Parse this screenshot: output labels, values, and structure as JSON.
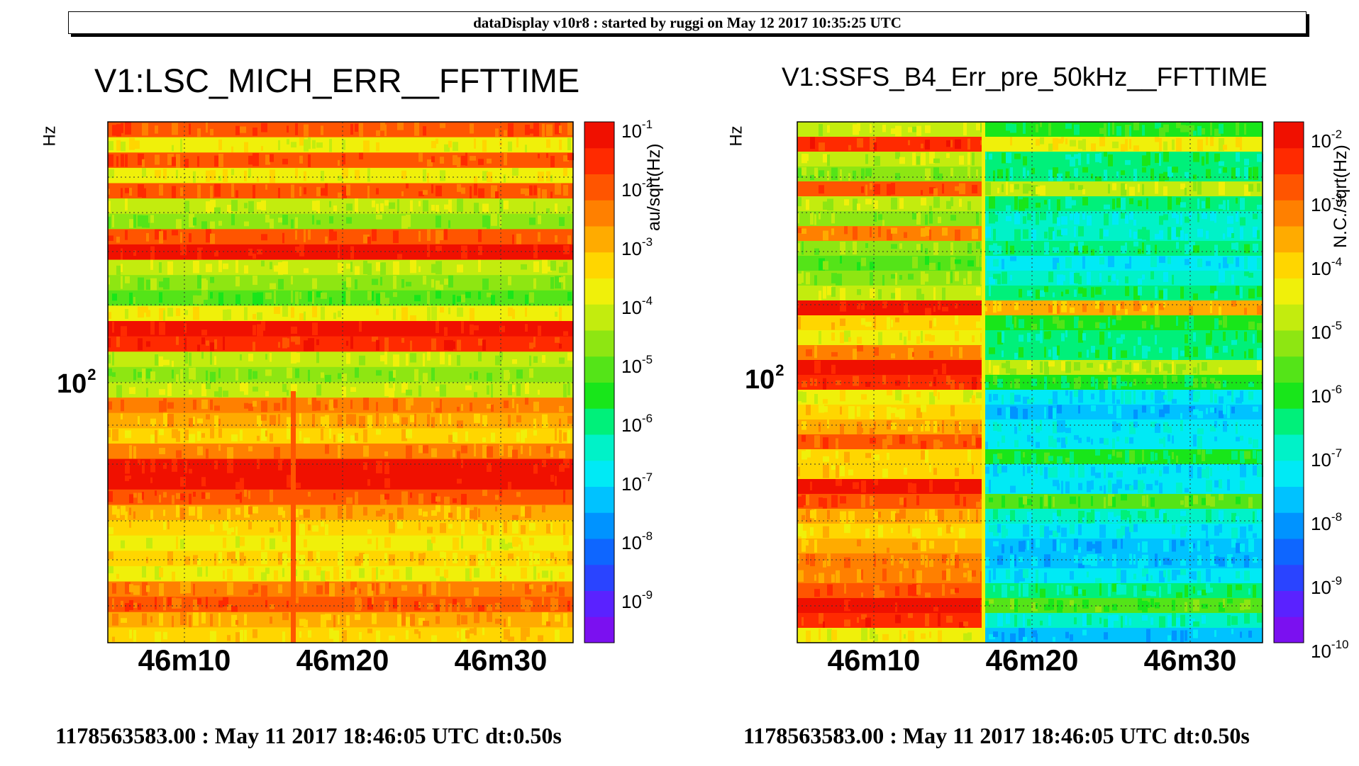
{
  "header": {
    "text": "dataDisplay v10r8 : started by ruggi on May 12 2017 10:35:25 UTC"
  },
  "colors": {
    "palette": [
      "#7b10f0",
      "#5a22ff",
      "#2a44ff",
      "#0e66ff",
      "#0093ff",
      "#00c2ff",
      "#00eaf5",
      "#00f2c8",
      "#00f07a",
      "#18e61a",
      "#54e418",
      "#8ee612",
      "#c3ec0e",
      "#f0f00a",
      "#ffd600",
      "#ffab00",
      "#ff8000",
      "#ff5500",
      "#ff2a00",
      "#f01000"
    ]
  },
  "chart_data": [
    {
      "type": "heatmap",
      "title": "V1:LSC_MICH_ERR__FFTTIME",
      "ylabel": "Hz",
      "y_tick_labels": [
        {
          "base": "10",
          "exp": "2"
        }
      ],
      "x_tick_labels": [
        "46m10",
        "46m20",
        "46m30"
      ],
      "colorbar_label": "au/sqrt(Hz)",
      "colorbar_ticks": [
        {
          "base": "10",
          "exp": "-1"
        },
        {
          "base": "10",
          "exp": "-2"
        },
        {
          "base": "10",
          "exp": "-3"
        },
        {
          "base": "10",
          "exp": "-4"
        },
        {
          "base": "10",
          "exp": "-5"
        },
        {
          "base": "10",
          "exp": "-6"
        },
        {
          "base": "10",
          "exp": "-7"
        },
        {
          "base": "10",
          "exp": "-8"
        },
        {
          "base": "10",
          "exp": "-9"
        }
      ],
      "footer": "1178563583.00 : May 11 2017 18:46:05 UTC dt:0.50s",
      "description_bands_level": [
        17,
        13,
        17,
        13,
        17,
        12,
        11,
        17,
        19,
        12,
        11,
        10,
        13,
        19,
        18,
        12,
        11,
        12,
        16,
        15,
        14,
        16,
        19,
        19,
        17,
        15,
        14,
        13,
        14,
        13,
        16,
        17,
        15,
        14
      ],
      "vertical_glitch_level": 17
    },
    {
      "type": "heatmap",
      "title": "V1:SSFS_B4_Err_pre_50kHz__FFTTIME",
      "ylabel": "Hz",
      "y_tick_labels": [
        {
          "base": "10",
          "exp": "2"
        }
      ],
      "x_tick_labels": [
        "46m10",
        "46m20",
        "46m30"
      ],
      "colorbar_label": "N.C./sqrt(Hz)",
      "colorbar_ticks": [
        {
          "base": "10",
          "exp": "-2"
        },
        {
          "base": "10",
          "exp": "-3"
        },
        {
          "base": "10",
          "exp": "-4"
        },
        {
          "base": "10",
          "exp": "-5"
        },
        {
          "base": "10",
          "exp": "-6"
        },
        {
          "base": "10",
          "exp": "-7"
        },
        {
          "base": "10",
          "exp": "-8"
        },
        {
          "base": "10",
          "exp": "-9"
        },
        {
          "base": "10",
          "exp": "-10"
        }
      ],
      "footer": "1178563583.00 : May 11 2017 18:46:05 UTC dt:0.50s",
      "left_region_levels": [
        12,
        18,
        12,
        11,
        17,
        12,
        11,
        16,
        11,
        10,
        11,
        12,
        19,
        14,
        13,
        16,
        19,
        18,
        13,
        14,
        15,
        17,
        14,
        14,
        19,
        17,
        15,
        14,
        15,
        16,
        16,
        17,
        19,
        18,
        13
      ],
      "right_region_levels": [
        9,
        13,
        8,
        8,
        12,
        8,
        7,
        7,
        8,
        6,
        7,
        8,
        15,
        9,
        8,
        8,
        12,
        9,
        6,
        5,
        6,
        6,
        9,
        6,
        6,
        10,
        7,
        6,
        5,
        5,
        6,
        8,
        10,
        7,
        5
      ]
    }
  ]
}
